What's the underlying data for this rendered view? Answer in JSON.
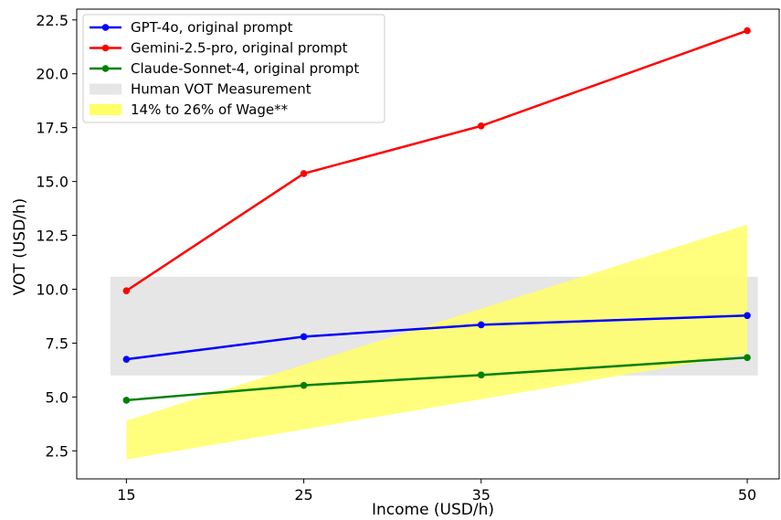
{
  "chart_data": {
    "type": "line",
    "xlabel": "Income (USD/h)",
    "ylabel": "VOT (USD/h)",
    "x": [
      15,
      25,
      35,
      50
    ],
    "x_ticks": [
      "15",
      "25",
      "35",
      "50"
    ],
    "xlim": [
      12.2,
      51.8
    ],
    "ylim": [
      1.2,
      23.0
    ],
    "y_ticks": [
      "2.5",
      "5.0",
      "7.5",
      "10.0",
      "12.5",
      "15.0",
      "17.5",
      "20.0",
      "22.5"
    ],
    "grid": false,
    "legend_position": "top-left",
    "series": [
      {
        "name": "GPT-4o, original prompt",
        "color": "#0000ff",
        "values": [
          6.75,
          7.8,
          8.35,
          8.78
        ]
      },
      {
        "name": "Gemini-2.5-pro, original prompt",
        "color": "#ff0000",
        "values": [
          9.93,
          15.37,
          17.58,
          22.0
        ]
      },
      {
        "name": "Claude-Sonnet-4, original prompt",
        "color": "#008000",
        "values": [
          4.85,
          5.54,
          6.02,
          6.83
        ]
      }
    ],
    "bands": [
      {
        "name": "Human VOT Measurement",
        "color": "#e6e6e6",
        "x_range": [
          14.1,
          50.6
        ],
        "y_range": [
          6.0,
          10.58
        ]
      },
      {
        "name": "14% to 26% of Wage**",
        "color": "#ffff66",
        "x": [
          15,
          50
        ],
        "lower": [
          2.1,
          7.0
        ],
        "upper": [
          3.9,
          13.0
        ]
      }
    ]
  }
}
